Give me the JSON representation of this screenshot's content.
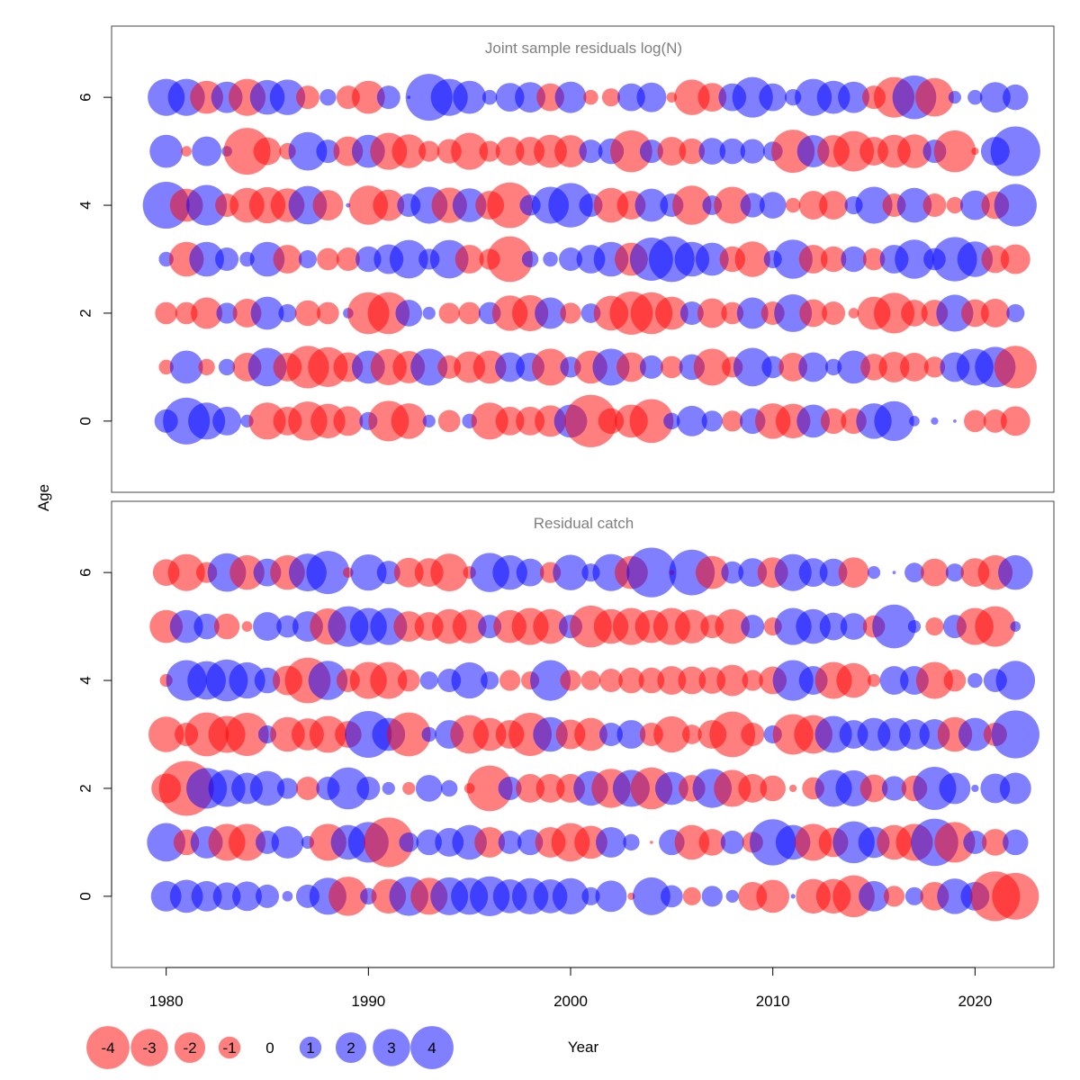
{
  "colors": {
    "positive": "#0000ff",
    "negative": "#ff0000",
    "title": "#7f7f7f",
    "axis": "#000000"
  },
  "chart_data": {
    "type": "scatter",
    "subtype": "bubble",
    "xlabel": "Year",
    "ylabel": "Age",
    "xlim": [
      1977.3,
      2023.9
    ],
    "ylim": [
      -1.32,
      7.32
    ],
    "xticks": [
      1980,
      1990,
      2000,
      2010,
      2020
    ],
    "yticks": [
      0,
      2,
      4,
      6
    ],
    "years": [
      1980,
      1981,
      1982,
      1983,
      1984,
      1985,
      1986,
      1987,
      1988,
      1989,
      1990,
      1991,
      1992,
      1993,
      1994,
      1995,
      1996,
      1997,
      1998,
      1999,
      2000,
      2001,
      2002,
      2003,
      2004,
      2005,
      2006,
      2007,
      2008,
      2009,
      2010,
      2011,
      2012,
      2013,
      2014,
      2015,
      2016,
      2017,
      2018,
      2019,
      2020,
      2021,
      2022
    ],
    "ages": [
      0,
      1,
      2,
      3,
      4,
      5,
      6
    ],
    "legend": {
      "values": [
        -4,
        -3,
        -2,
        -1,
        0,
        1,
        2,
        3,
        4
      ],
      "labels": [
        "-4",
        "-3",
        "-2",
        "-1",
        "0",
        "1",
        "2",
        "3",
        "4"
      ],
      "placement": "bottom-left"
    },
    "panels": [
      {
        "title": "Joint sample residuals log(N)",
        "residuals": [
          [
            1.0,
            4.0,
            2.5,
            1.5,
            0.3,
            -2.5,
            -1.5,
            -2.8,
            -2.2,
            -1.6,
            0.6,
            -3.0,
            -2.3,
            0.3,
            -0.9,
            0.4,
            -2.5,
            -1.5,
            -1.5,
            -1.8,
            2.0,
            -5.0,
            -1.2,
            -2.0,
            -3.5,
            0.5,
            1.7,
            0.8,
            -0.8,
            1.2,
            -2.3,
            -2.2,
            2.0,
            -1.2,
            -1.2,
            2.3,
            2.9,
            0.2,
            0.1,
            0.02,
            -0.9,
            -1.0,
            -1.6
          ],
          [
            -0.4,
            2.0,
            -0.5,
            0.5,
            -1.5,
            2.7,
            -1.5,
            -3.3,
            -2.9,
            -1.6,
            2.0,
            -2.4,
            -1.9,
            2.5,
            -1.0,
            -1.8,
            -2.0,
            1.6,
            1.5,
            -2.5,
            0.8,
            -2.0,
            2.5,
            -1.6,
            1.0,
            -0.9,
            1.2,
            -2.5,
            -0.8,
            2.7,
            0.9,
            -1.5,
            1.6,
            0.5,
            2.0,
            -1.3,
            -1.7,
            -1.5,
            -0.8,
            1.6,
            2.5,
            3.0,
            -3.3
          ],
          [
            -0.9,
            -0.9,
            -1.8,
            0.8,
            -1.5,
            2.0,
            0.6,
            -1.2,
            -0.9,
            0.2,
            -3.2,
            -3.2,
            1.3,
            0.3,
            -0.8,
            -0.9,
            0.9,
            -2.3,
            -2.4,
            1.8,
            -0.8,
            0.7,
            -2.2,
            -3.4,
            -3.2,
            -2.0,
            1.0,
            -1.6,
            -0.9,
            1.8,
            -1.0,
            2.6,
            -1.4,
            -1.0,
            -0.2,
            -2.0,
            -3.0,
            -1.3,
            -1.3,
            2.5,
            -1.4,
            -1.5,
            0.6
          ],
          [
            0.4,
            -2.2,
            2.2,
            1.0,
            0.4,
            2.2,
            -1.5,
            0.6,
            -0.9,
            -1.0,
            1.2,
            1.6,
            2.7,
            0.8,
            2.7,
            -1.5,
            -0.8,
            -3.8,
            0.5,
            0.4,
            1.0,
            1.5,
            2.2,
            -2.0,
            3.4,
            3.8,
            2.2,
            2.0,
            -1.2,
            -2.3,
            0.6,
            2.8,
            -1.5,
            -1.2,
            1.2,
            -0.9,
            1.5,
            2.8,
            0.9,
            3.6,
            2.3,
            -1.4,
            -1.6
          ],
          [
            4.0,
            -2.0,
            3.0,
            -1.0,
            -2.2,
            -2.4,
            -2.1,
            2.7,
            -1.7,
            0.04,
            -2.8,
            -1.8,
            1.0,
            2.5,
            -2.3,
            2.1,
            -1.5,
            -3.8,
            0.8,
            2.5,
            3.6,
            1.0,
            -2.2,
            -1.5,
            2.0,
            1.0,
            -2.8,
            0.7,
            -2.5,
            1.1,
            1.3,
            -0.4,
            -1.5,
            -1.5,
            0.6,
            2.5,
            -1.0,
            2.2,
            -1.0,
            -0.5,
            1.6,
            -1.4,
            3.3
          ],
          [
            2.0,
            -0.2,
            1.6,
            0.2,
            -4.0,
            -1.4,
            -0.5,
            2.7,
            1.0,
            -1.6,
            2.0,
            -2.5,
            -2.1,
            -0.8,
            -1.1,
            -2.5,
            -0.8,
            -1.5,
            -1.5,
            -2.0,
            -1.9,
            1.0,
            1.2,
            -3.2,
            1.0,
            -1.5,
            -1.2,
            1.3,
            1.2,
            1.1,
            0.7,
            -3.4,
            1.9,
            -1.9,
            -3.0,
            -1.5,
            -2.0,
            -2.1,
            1.0,
            -3.2,
            -0.1,
            1.5,
            4.5
          ],
          [
            2.5,
            2.5,
            -2.0,
            1.8,
            -2.5,
            2.2,
            2.3,
            -1.0,
            0.5,
            -1.0,
            -2.0,
            1.0,
            0.02,
            4.0,
            2.5,
            2.0,
            0.4,
            1.5,
            1.7,
            -1.4,
            1.8,
            -0.4,
            -0.6,
            1.4,
            1.6,
            -0.2,
            -2.3,
            -1.5,
            1.4,
            3.0,
            1.4,
            0.5,
            2.5,
            2.0,
            1.8,
            -1.0,
            -3.0,
            3.5,
            -2.7,
            0.3,
            0.4,
            1.7,
            1.2
          ]
        ]
      },
      {
        "title": "Residual catch",
        "residuals": [
          [
            1.7,
            2.0,
            1.7,
            1.4,
            1.6,
            1.0,
            0.2,
            1.0,
            2.5,
            -2.8,
            0.5,
            -2.2,
            2.8,
            -2.5,
            2.6,
            2.5,
            2.9,
            2.1,
            2.4,
            2.1,
            2.4,
            0.6,
            1.8,
            -0.1,
            2.6,
            0.9,
            -0.6,
            0.8,
            0.3,
            -1.5,
            -2.0,
            0.04,
            -2.2,
            -2.2,
            -3.2,
            1.7,
            -0.8,
            0.6,
            -1.5,
            2.3,
            1.5,
            -4.5,
            -4.0
          ],
          [
            2.7,
            -1.2,
            1.9,
            -2.5,
            -2.5,
            1.0,
            1.9,
            0.3,
            -2.5,
            2.2,
            3.0,
            -4.5,
            0.7,
            1.2,
            1.5,
            2.2,
            -1.7,
            1.0,
            1.2,
            -1.7,
            -2.7,
            -2.0,
            1.7,
            0.5,
            -0.02,
            1.2,
            -2.2,
            -1.3,
            1.0,
            -0.8,
            3.9,
            2.2,
            -2.5,
            -1.6,
            3.2,
            1.8,
            -2.2,
            -2.5,
            4.1,
            -3.0,
            1.0,
            -1.3,
            1.2
          ],
          [
            -1.6,
            -5.5,
            3.0,
            2.5,
            1.8,
            2.2,
            0.8,
            -1.0,
            1.0,
            3.2,
            1.0,
            0.3,
            -0.3,
            1.3,
            0.5,
            -0.2,
            -3.8,
            1.0,
            -1.5,
            -1.5,
            -1.5,
            2.2,
            -2.8,
            2.5,
            -3.2,
            2.0,
            -1.3,
            2.8,
            -2.5,
            -1.5,
            -1.2,
            -0.1,
            -0.9,
            2.5,
            2.4,
            -1.4,
            1.1,
            -1.2,
            3.4,
            1.8,
            0.1,
            1.6,
            1.8
          ],
          [
            -2.3,
            -1.0,
            -3.5,
            -2.5,
            -3.4,
            0.6,
            -2.2,
            -1.9,
            -2.5,
            -1.3,
            4.0,
            2.0,
            -3.5,
            0.4,
            1.5,
            -2.7,
            -2.0,
            -1.5,
            -3.4,
            2.2,
            -1.6,
            -2.0,
            1.0,
            1.5,
            -1.0,
            -2.4,
            -0.7,
            -1.5,
            -3.8,
            -1.0,
            0.6,
            -3.0,
            -2.7,
            2.5,
            1.5,
            2.0,
            2.0,
            1.7,
            1.7,
            -2.2,
            2.0,
            -1.0,
            4.2
          ],
          [
            -0.3,
            3.0,
            2.7,
            3.2,
            2.4,
            1.2,
            -1.6,
            -3.8,
            2.8,
            -1.0,
            -2.5,
            -2.5,
            -0.9,
            0.6,
            1.0,
            2.4,
            0.6,
            -0.8,
            -0.6,
            3.0,
            -0.8,
            -0.7,
            -1.0,
            -1.2,
            -1.2,
            -1.5,
            -1.4,
            -1.3,
            -1.8,
            -0.8,
            -1.4,
            3.0,
            1.5,
            -2.5,
            -2.2,
            -0.3,
            1.5,
            1.5,
            -2.5,
            -0.9,
            0.4,
            1.0,
            2.8
          ],
          [
            -2.0,
            2.0,
            1.2,
            -1.2,
            -0.2,
            1.5,
            0.9,
            1.7,
            -2.4,
            3.0,
            2.5,
            2.5,
            -1.7,
            -1.5,
            -2.2,
            -2.1,
            1.0,
            -2.0,
            -2.5,
            -2.2,
            1.0,
            -3.2,
            -2.2,
            -2.5,
            -2.0,
            -2.5,
            -2.1,
            -1.0,
            -2.2,
            1.0,
            -0.6,
            2.5,
            2.2,
            1.4,
            1.3,
            -0.9,
            3.5,
            0.3,
            -0.6,
            1.0,
            -2.5,
            -3.0,
            0.2
          ],
          [
            -1.3,
            -2.5,
            -0.8,
            2.7,
            -2.2,
            1.4,
            -2.2,
            2.6,
            3.4,
            -0.2,
            2.4,
            1.0,
            -1.6,
            -1.5,
            -2.6,
            -0.3,
            2.8,
            2.2,
            1.4,
            -0.8,
            2.3,
            0.6,
            2.5,
            -2.0,
            4.5,
            -0.05,
            3.8,
            -2.0,
            0.9,
            1.5,
            -1.7,
            2.5,
            1.5,
            1.4,
            -1.7,
            0.3,
            0.02,
            0.7,
            -1.4,
            0.6,
            -1.5,
            -2.2,
            2.2
          ]
        ]
      }
    ]
  }
}
